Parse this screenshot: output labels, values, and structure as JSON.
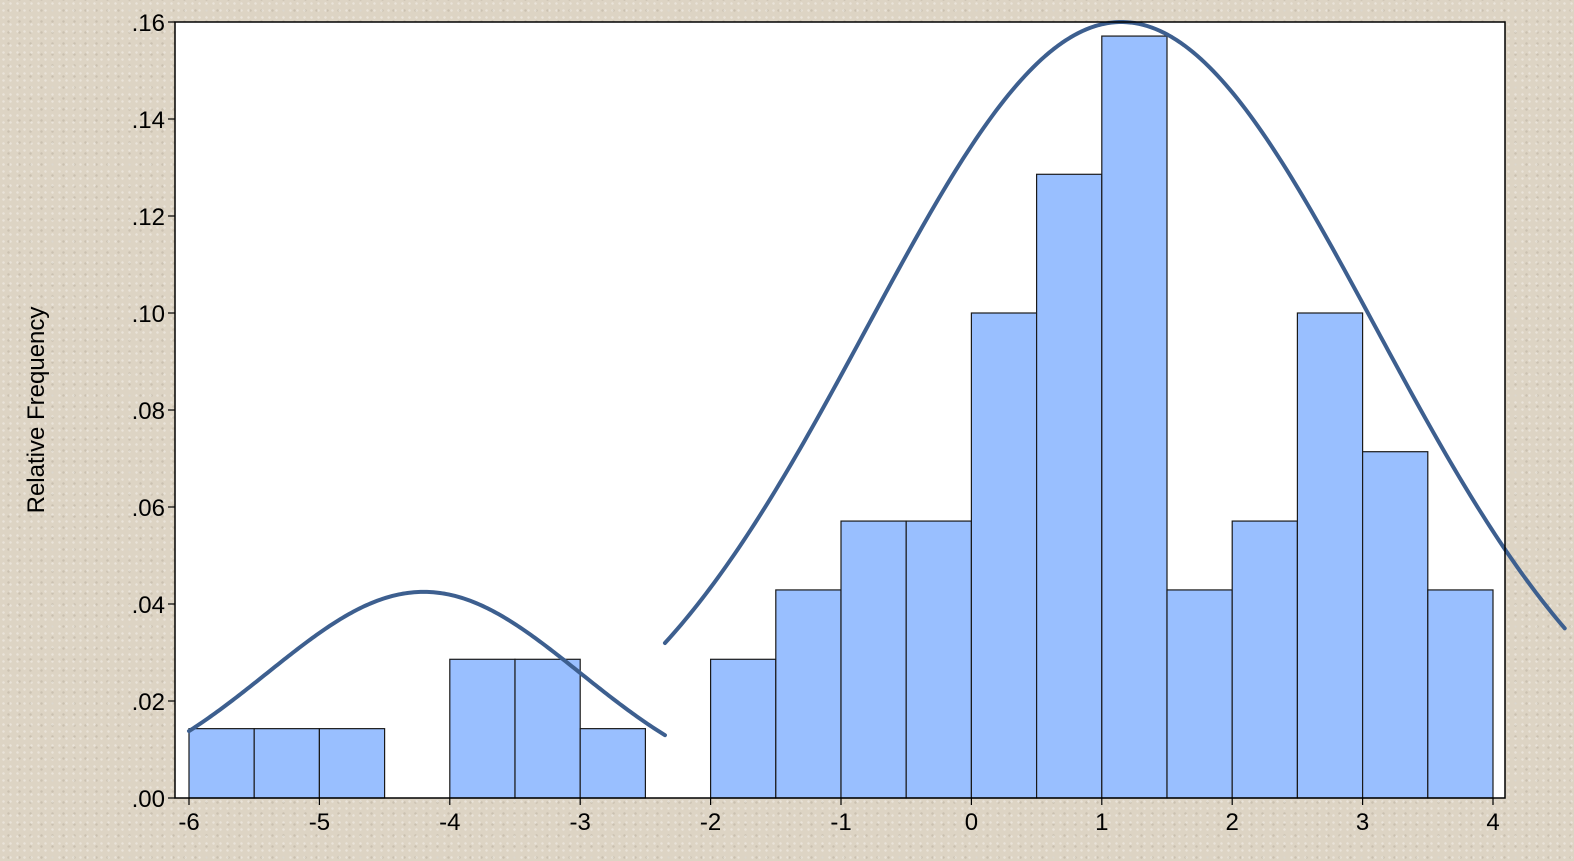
{
  "chart_data": {
    "type": "bar",
    "title": "",
    "xlabel": "",
    "ylabel": "Relative Frequency",
    "xlim": [
      -6,
      4
    ],
    "ylim": [
      0,
      0.16
    ],
    "xticks": [
      -6,
      -5,
      -4,
      -3,
      -2,
      -1,
      0,
      1,
      2,
      3,
      4
    ],
    "xtick_labels": [
      "-6",
      "-5",
      "-4",
      "-3",
      "-2",
      "-1",
      "0",
      "1",
      "2",
      "3",
      "4"
    ],
    "yticks": [
      0,
      0.02,
      0.04,
      0.06,
      0.08,
      0.1,
      0.12,
      0.14,
      0.16
    ],
    "ytick_labels": [
      ".00",
      ".02",
      ".04",
      ".06",
      ".08",
      ".10",
      ".12",
      ".14",
      ".16"
    ],
    "bin_width": 0.5,
    "bins": [
      {
        "start": -6.0,
        "value": 0.0143
      },
      {
        "start": -5.5,
        "value": 0.0143
      },
      {
        "start": -5.0,
        "value": 0.0143
      },
      {
        "start": -4.5,
        "value": 0.0
      },
      {
        "start": -4.0,
        "value": 0.0286
      },
      {
        "start": -3.5,
        "value": 0.0286
      },
      {
        "start": -3.0,
        "value": 0.0143
      },
      {
        "start": -2.5,
        "value": 0.0
      },
      {
        "start": -2.0,
        "value": 0.0286
      },
      {
        "start": -1.5,
        "value": 0.0429
      },
      {
        "start": -1.0,
        "value": 0.0571
      },
      {
        "start": -0.5,
        "value": 0.0571
      },
      {
        "start": 0.0,
        "value": 0.1
      },
      {
        "start": 0.5,
        "value": 0.1286
      },
      {
        "start": 1.0,
        "value": 0.1571
      },
      {
        "start": 1.5,
        "value": 0.0429
      },
      {
        "start": 2.0,
        "value": 0.0571
      },
      {
        "start": 2.5,
        "value": 0.1
      },
      {
        "start": 3.0,
        "value": 0.0714
      },
      {
        "start": 3.5,
        "value": 0.0429
      }
    ],
    "fitted_curves": [
      {
        "x_range": [
          -6.0,
          -2.35
        ],
        "peak_x": -4.2,
        "peak_y": 0.0425,
        "sigma": 1.2
      },
      {
        "x_range": [
          -2.35,
          4.55
        ],
        "peak_x": 1.15,
        "peak_y": 0.16,
        "sigma": 1.95
      }
    ],
    "grid": false,
    "legend": "none",
    "colors": {
      "bar": "#99bfff",
      "bar_edge": "#1a1a1a",
      "curve": "#3d5f8f",
      "plot_bg": "#ffffff",
      "page_bg": "#ddd4c4"
    }
  }
}
